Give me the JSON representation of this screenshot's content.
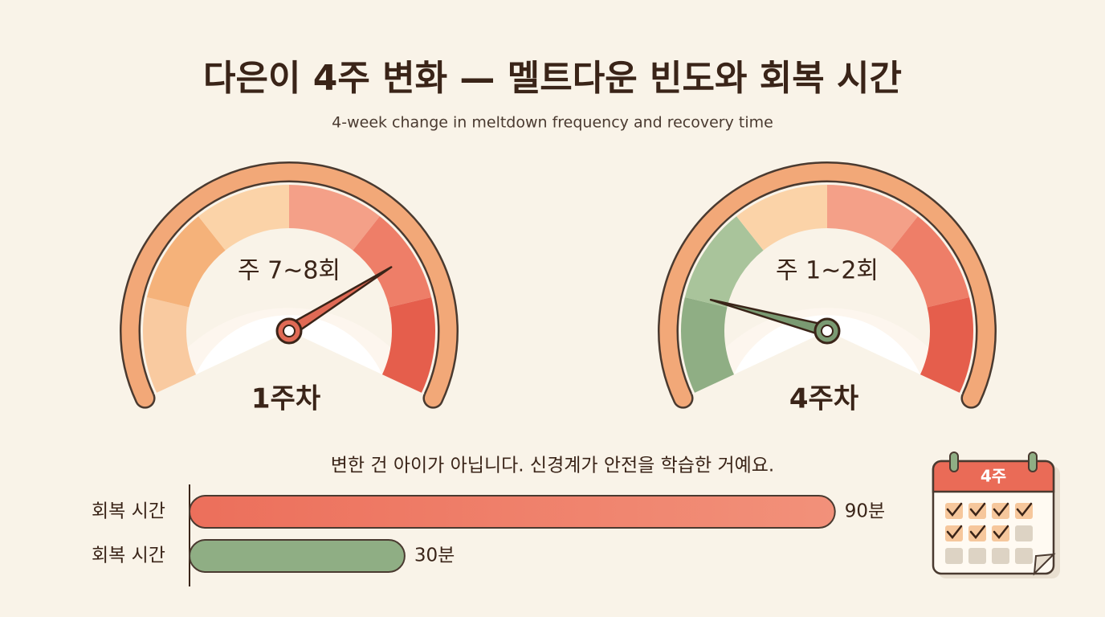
{
  "header": {
    "title": "다은이 4주 변화 — 멜트다운 빈도와 회복 시간",
    "subtitle": "4-week change in meltdown frequency and recovery time"
  },
  "gauges": [
    {
      "label": "주 7~8회",
      "week": "1주차"
    },
    {
      "label": "주 1~2회",
      "week": "4주차"
    }
  ],
  "caption": "변한 건 아이가 아닙니다. 신경계가 안전을 학습한 거예요.",
  "calendar": {
    "label": "4주"
  },
  "chart_data": {
    "type": "bar",
    "orientation": "horizontal",
    "categories": [
      "회복 시간",
      "회복 시간"
    ],
    "values": [
      90,
      30
    ],
    "value_labels": [
      "90분",
      "30분"
    ],
    "colors": [
      "#ee7a64",
      "#8fae84"
    ]
  }
}
